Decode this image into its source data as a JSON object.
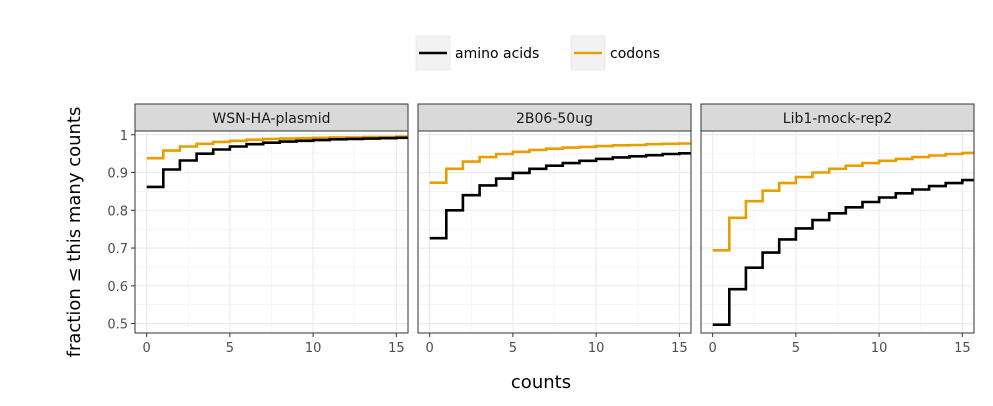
{
  "chart_data": {
    "type": "line",
    "step": true,
    "xlabel": "counts",
    "ylabel": "fraction ≤ this many counts",
    "xlim": [
      -0.7,
      15.7
    ],
    "ylim": [
      0.475,
      1.01
    ],
    "x_ticks": [
      0,
      5,
      10,
      15
    ],
    "y_ticks": [
      0.5,
      0.6,
      0.7,
      0.8,
      0.9,
      1
    ],
    "y_tick_labels": [
      "0.5",
      "0.6",
      "0.7",
      "0.8",
      "0.9",
      "1"
    ],
    "grid": true,
    "legend_position": "top",
    "legend": [
      {
        "name": "amino acids",
        "color": "#000000"
      },
      {
        "name": "codons",
        "color": "#E69F00"
      }
    ],
    "panels": [
      {
        "title": "WSN-HA-plasmid",
        "x": [
          0,
          1,
          2,
          3,
          4,
          5,
          6,
          7,
          8,
          9,
          10,
          11,
          12,
          13,
          14,
          15,
          16
        ],
        "series": [
          {
            "name": "amino acids",
            "values": [
              0.862,
              0.908,
              0.932,
              0.95,
              0.961,
              0.969,
              0.975,
              0.979,
              0.982,
              0.984,
              0.986,
              0.988,
              0.989,
              0.99,
              0.991,
              0.992,
              0.993
            ]
          },
          {
            "name": "codons",
            "values": [
              0.938,
              0.958,
              0.969,
              0.976,
              0.981,
              0.984,
              0.987,
              0.989,
              0.99,
              0.991,
              0.992,
              0.993,
              0.993,
              0.994,
              0.994,
              0.995,
              0.995
            ]
          }
        ]
      },
      {
        "title": "2B06-50ug",
        "x": [
          0,
          1,
          2,
          3,
          4,
          5,
          6,
          7,
          8,
          9,
          10,
          11,
          12,
          13,
          14,
          15,
          16
        ],
        "series": [
          {
            "name": "amino acids",
            "values": [
              0.726,
              0.8,
              0.84,
              0.866,
              0.884,
              0.899,
              0.91,
              0.918,
              0.925,
              0.931,
              0.936,
              0.94,
              0.943,
              0.946,
              0.949,
              0.951,
              0.953
            ]
          },
          {
            "name": "codons",
            "values": [
              0.873,
              0.91,
              0.929,
              0.941,
              0.949,
              0.955,
              0.96,
              0.963,
              0.966,
              0.968,
              0.97,
              0.972,
              0.973,
              0.975,
              0.976,
              0.977,
              0.978
            ]
          }
        ]
      },
      {
        "title": "Lib1-mock-rep2",
        "x": [
          0,
          1,
          2,
          3,
          4,
          5,
          6,
          7,
          8,
          9,
          10,
          11,
          12,
          13,
          14,
          15,
          16
        ],
        "series": [
          {
            "name": "amino acids",
            "values": [
              0.497,
              0.591,
              0.648,
              0.688,
              0.723,
              0.752,
              0.774,
              0.792,
              0.808,
              0.822,
              0.834,
              0.845,
              0.855,
              0.864,
              0.872,
              0.88,
              0.887
            ]
          },
          {
            "name": "codons",
            "values": [
              0.694,
              0.78,
              0.824,
              0.852,
              0.872,
              0.888,
              0.9,
              0.91,
              0.918,
              0.925,
              0.931,
              0.936,
              0.941,
              0.945,
              0.949,
              0.952,
              0.955
            ]
          }
        ]
      }
    ]
  }
}
